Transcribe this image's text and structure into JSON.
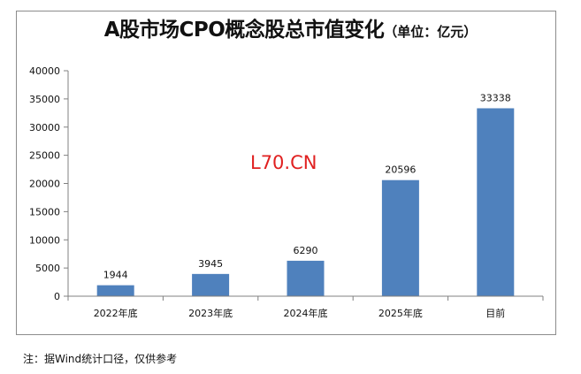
{
  "title": {
    "main": "A股市场CPO概念股总市值变化",
    "unit": "（单位：亿元）"
  },
  "watermark": "L70.CN",
  "footnote": "注：据Wind统计口径，仅供参考",
  "colors": {
    "bar": "#4f81bd",
    "axis": "#808080",
    "text": "#111111",
    "watermark": "#e02020"
  },
  "chart_data": {
    "type": "bar",
    "title": "A股市场CPO概念股总市值变化",
    "xlabel": "",
    "ylabel": "",
    "categories": [
      "2022年底",
      "2023年底",
      "2024年底",
      "2025年底",
      "目前"
    ],
    "values": [
      1944,
      3945,
      6290,
      20596,
      33338
    ],
    "data_labels": [
      "1944",
      "3945",
      "6290",
      "20596",
      "33338"
    ],
    "ylim": [
      0,
      40000
    ],
    "yticks": [
      "0",
      "5000",
      "10000",
      "15000",
      "20000",
      "25000",
      "30000",
      "35000",
      "40000"
    ],
    "grid": false,
    "legend": "none"
  }
}
